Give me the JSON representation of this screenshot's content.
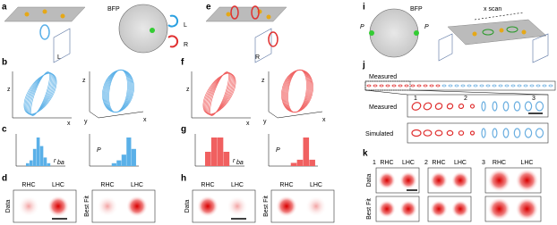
{
  "panels": {
    "a": {
      "letter": "a",
      "bfp": "BFP",
      "arrow_top": "L",
      "arrow_bottom": "R",
      "pol": "L"
    },
    "b": {
      "letter": "b",
      "z1": "z",
      "x1": "x",
      "z2": "z",
      "y2": "y",
      "x2": "x"
    },
    "c": {
      "letter": "c",
      "xlabel": "r",
      "xsub": "ba",
      "plabel": "P",
      "hist_left": [
        1,
        2,
        6,
        10,
        7,
        3,
        1
      ],
      "hist_right": [
        1,
        2,
        4,
        10,
        6
      ]
    },
    "d": {
      "letter": "d",
      "rhc1": "RHC",
      "lhc1": "LHC",
      "rhc2": "RHC",
      "lhc2": "LHC",
      "data": "Data",
      "fit": "Best Fit"
    },
    "e": {
      "letter": "e",
      "pol": "R"
    },
    "f": {
      "letter": "f",
      "z1": "z",
      "x1": "x",
      "z2": "z",
      "y2": "y",
      "x2": "x"
    },
    "g": {
      "letter": "g",
      "xlabel": "r",
      "xsub": "ba",
      "plabel": "P",
      "hist_left": [
        3,
        6,
        6,
        3
      ],
      "hist_right": [
        1,
        2,
        9,
        2
      ]
    },
    "h": {
      "letter": "h",
      "rhc1": "RHC",
      "lhc1": "LHC",
      "rhc2": "RHC",
      "lhc2": "LHC",
      "data": "Data",
      "fit": "Best Fit"
    },
    "i": {
      "letter": "i",
      "bfp": "BFP",
      "p_left": "P",
      "p_right": "P",
      "scan": "x scan"
    },
    "j": {
      "letter": "j",
      "measured_top": "Measured",
      "n1": "1",
      "n2": "2",
      "n3": "3",
      "measured": "Measured",
      "simulated": "Simulated"
    },
    "k": {
      "letter": "k",
      "n1": "1",
      "n2": "2",
      "n3": "3",
      "rhc1": "RHC",
      "lhc1": "LHC",
      "rhc2": "RHC",
      "lhc2": "LHC",
      "rhc3": "RHC",
      "lhc3": "LHC",
      "data": "Data",
      "fit": "Best Fit"
    }
  }
}
